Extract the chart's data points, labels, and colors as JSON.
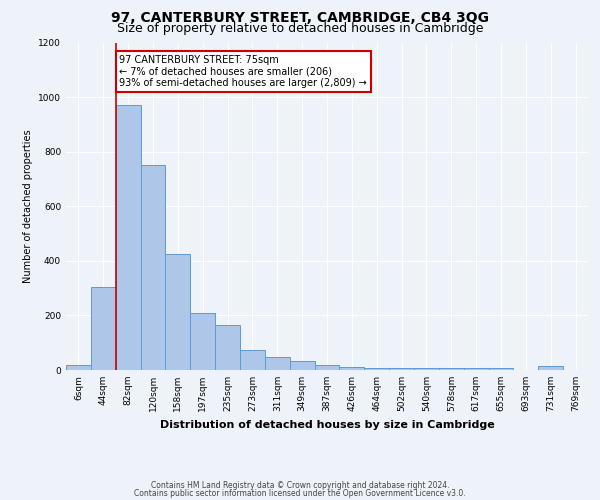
{
  "title": "97, CANTERBURY STREET, CAMBRIDGE, CB4 3QG",
  "subtitle": "Size of property relative to detached houses in Cambridge",
  "xlabel": "Distribution of detached houses by size in Cambridge",
  "ylabel": "Number of detached properties",
  "categories": [
    "6sqm",
    "44sqm",
    "82sqm",
    "120sqm",
    "158sqm",
    "197sqm",
    "235sqm",
    "273sqm",
    "311sqm",
    "349sqm",
    "387sqm",
    "426sqm",
    "464sqm",
    "502sqm",
    "540sqm",
    "578sqm",
    "617sqm",
    "655sqm",
    "693sqm",
    "731sqm",
    "769sqm"
  ],
  "values": [
    20,
    305,
    970,
    750,
    425,
    210,
    165,
    75,
    48,
    33,
    18,
    12,
    8,
    7,
    7,
    7,
    7,
    7,
    0,
    15,
    0
  ],
  "bar_color": "#aec6e8",
  "bar_edge_color": "#5b9bd5",
  "vline_color": "#cc0000",
  "vline_x": 1.5,
  "annotation_text": "97 CANTERBURY STREET: 75sqm\n← 7% of detached houses are smaller (206)\n93% of semi-detached houses are larger (2,809) →",
  "annotation_box_color": "#ffffff",
  "annotation_box_edge": "#cc0000",
  "footnote1": "Contains HM Land Registry data © Crown copyright and database right 2024.",
  "footnote2": "Contains public sector information licensed under the Open Government Licence v3.0.",
  "ylim": [
    0,
    1200
  ],
  "yticks": [
    0,
    200,
    400,
    600,
    800,
    1000,
    1200
  ],
  "background_color": "#eef2f9",
  "grid_color": "#ffffff",
  "title_fontsize": 10,
  "subtitle_fontsize": 9,
  "ylabel_fontsize": 7,
  "xlabel_fontsize": 8,
  "tick_fontsize": 6.5,
  "annot_fontsize": 7,
  "footnote_fontsize": 5.5
}
